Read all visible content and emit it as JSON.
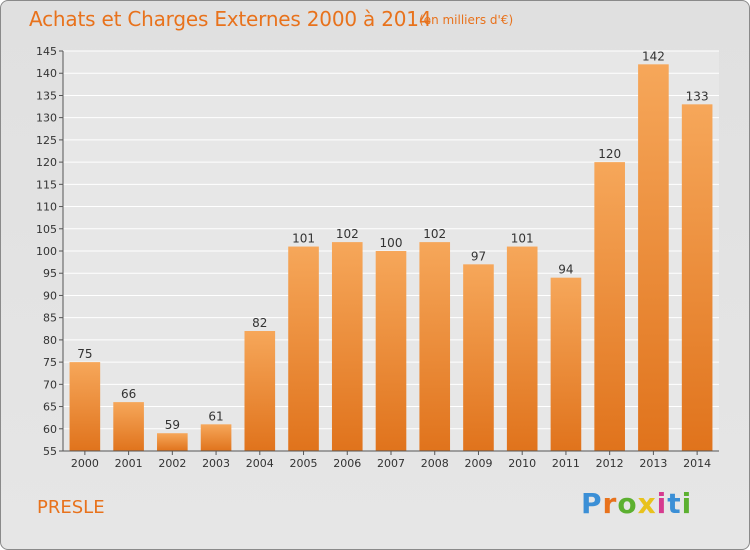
{
  "title": "Achats et Charges Externes 2000 à 2014",
  "unit_note": "(en milliers d'€)",
  "commune": "PRESLE",
  "logo": {
    "letters": [
      "P",
      "r",
      "o",
      "x",
      "i",
      "t",
      "i"
    ],
    "colors": [
      "#3b8fd6",
      "#e8721c",
      "#5cb030",
      "#e8c21c",
      "#d63b8f",
      "#3b8fd6",
      "#5cb030"
    ]
  },
  "colors": {
    "accent": "#e8721c",
    "bar_top": "#f6a75a",
    "bar_bottom": "#e0731c"
  },
  "chart_data": {
    "type": "bar",
    "categories": [
      "2000",
      "2001",
      "2002",
      "2003",
      "2004",
      "2005",
      "2006",
      "2007",
      "2008",
      "2009",
      "2010",
      "2011",
      "2012",
      "2013",
      "2014"
    ],
    "values": [
      75,
      66,
      59,
      61,
      82,
      101,
      102,
      100,
      102,
      97,
      101,
      94,
      120,
      142,
      133
    ],
    "ylim": [
      55,
      145
    ],
    "yticks": [
      55,
      60,
      65,
      70,
      75,
      80,
      85,
      90,
      95,
      100,
      105,
      110,
      115,
      120,
      125,
      130,
      135,
      140,
      145
    ],
    "grid": true,
    "data_labels": true
  }
}
